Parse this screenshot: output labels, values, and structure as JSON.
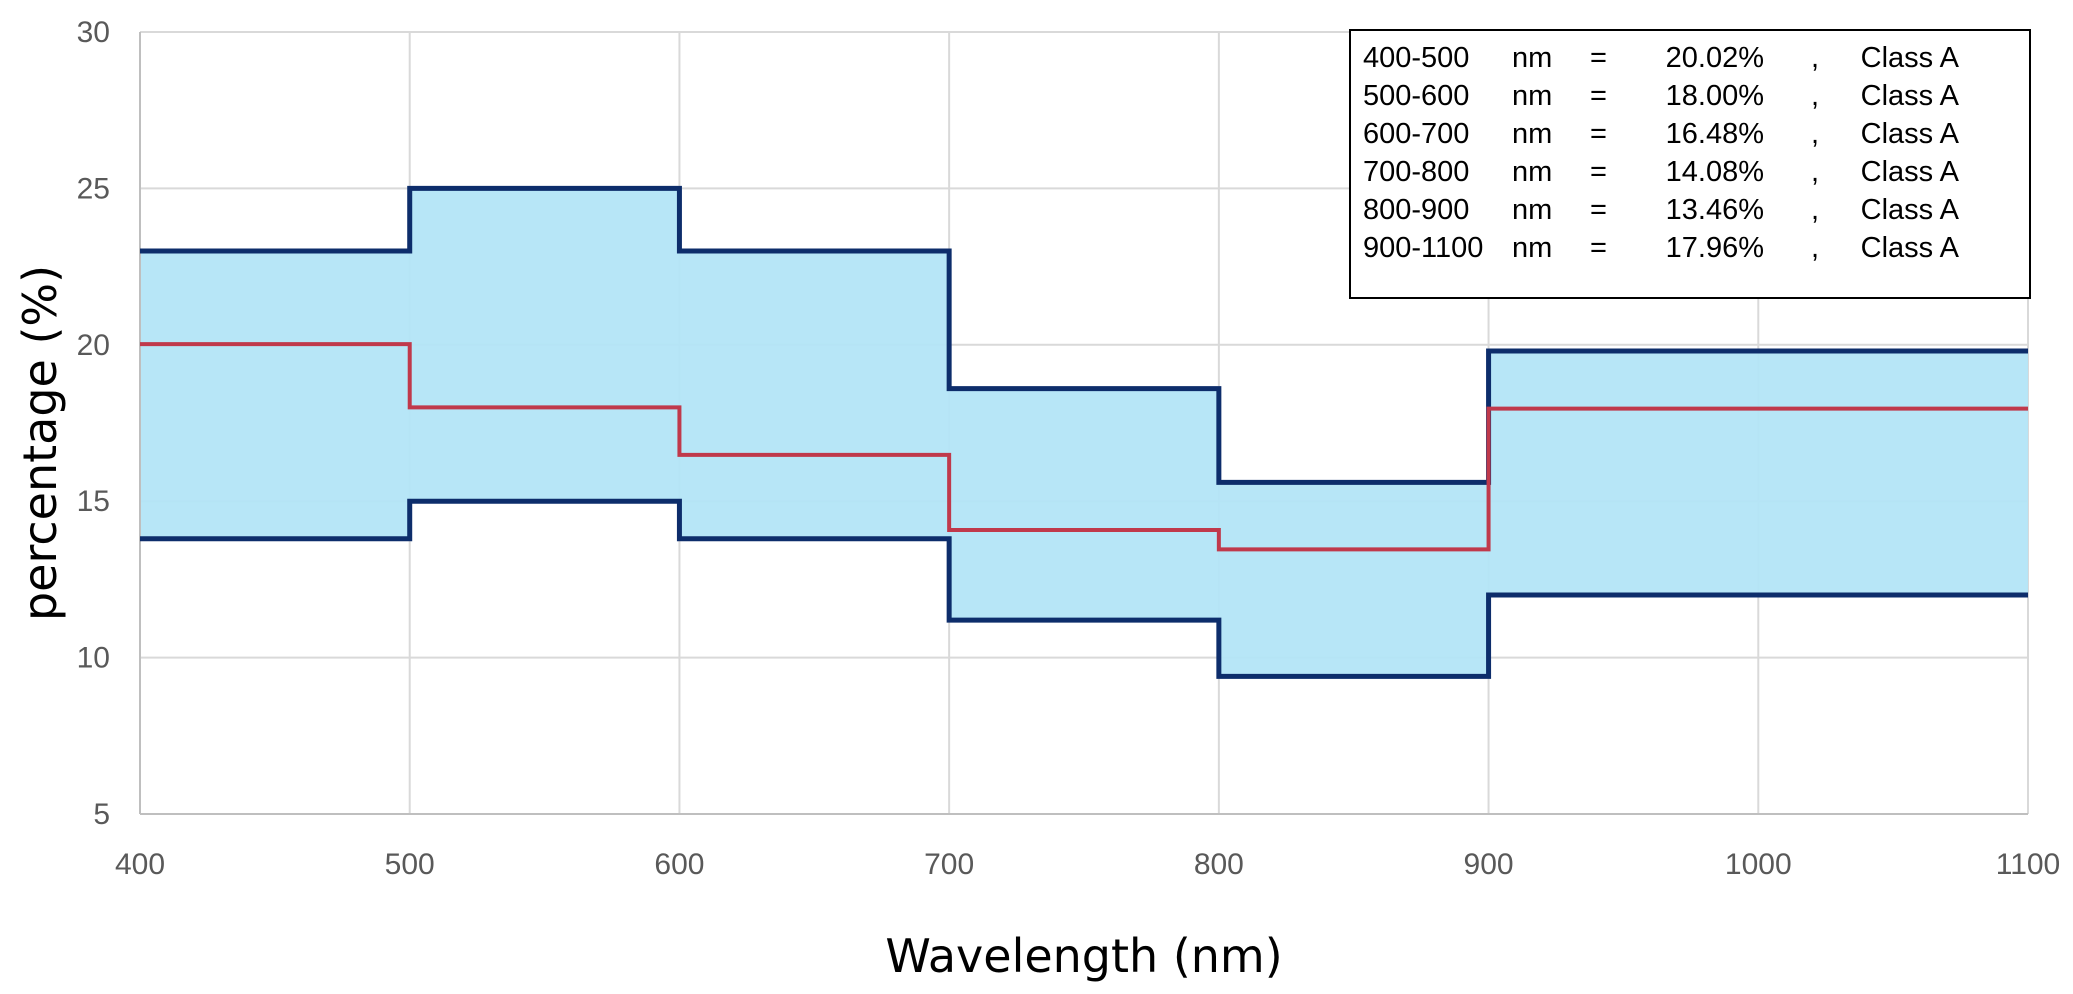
{
  "chart_data": {
    "type": "line",
    "title": "",
    "xlabel": "Wavelength (nm)",
    "ylabel": "percentage (%)",
    "xlim": [
      400,
      1100
    ],
    "ylim": [
      5,
      30
    ],
    "xticks": [
      "400",
      "500",
      "600",
      "700",
      "800",
      "900",
      "1000",
      "1100"
    ],
    "yticks": [
      "5",
      "10",
      "15",
      "20",
      "25",
      "30"
    ],
    "grid": true,
    "band_bins": [
      {
        "x0": 400,
        "x1": 500,
        "low": 13.8,
        "high": 23.0,
        "value": 20.02
      },
      {
        "x0": 500,
        "x1": 600,
        "low": 15.0,
        "high": 25.0,
        "value": 18.0
      },
      {
        "x0": 600,
        "x1": 700,
        "low": 13.8,
        "high": 23.0,
        "value": 16.48
      },
      {
        "x0": 700,
        "x1": 800,
        "low": 11.2,
        "high": 18.6,
        "value": 14.08
      },
      {
        "x0": 800,
        "x1": 900,
        "low": 9.4,
        "high": 15.6,
        "value": 13.46
      },
      {
        "x0": 900,
        "x1": 1100,
        "low": 12.0,
        "high": 19.8,
        "value": 17.96
      }
    ],
    "annotation_lines": [
      {
        "range": "400-500",
        "unit": "nm",
        "eq": "=",
        "value": "20.02%",
        "sep": ",",
        "cls": "Class A"
      },
      {
        "range": "500-600",
        "unit": "nm",
        "eq": "=",
        "value": "18.00%",
        "sep": ",",
        "cls": "Class A"
      },
      {
        "range": "600-700",
        "unit": "nm",
        "eq": "=",
        "value": "16.48%",
        "sep": ",",
        "cls": "Class A"
      },
      {
        "range": "700-800",
        "unit": "nm",
        "eq": "=",
        "value": "14.08%",
        "sep": ",",
        "cls": "Class A"
      },
      {
        "range": "800-900",
        "unit": "nm",
        "eq": "=",
        "value": "13.46%",
        "sep": ",",
        "cls": "Class A"
      },
      {
        "range": "900-1100",
        "unit": "nm",
        "eq": "=",
        "value": "17.96%",
        "sep": ",",
        "cls": "Class A"
      }
    ],
    "annotation_placement": "top-right",
    "colors": {
      "band_fill": "#b3e5f7",
      "band_edge": "#0d2d6b",
      "value_line": "#c0394b",
      "grid": "#d9d9d9"
    }
  }
}
